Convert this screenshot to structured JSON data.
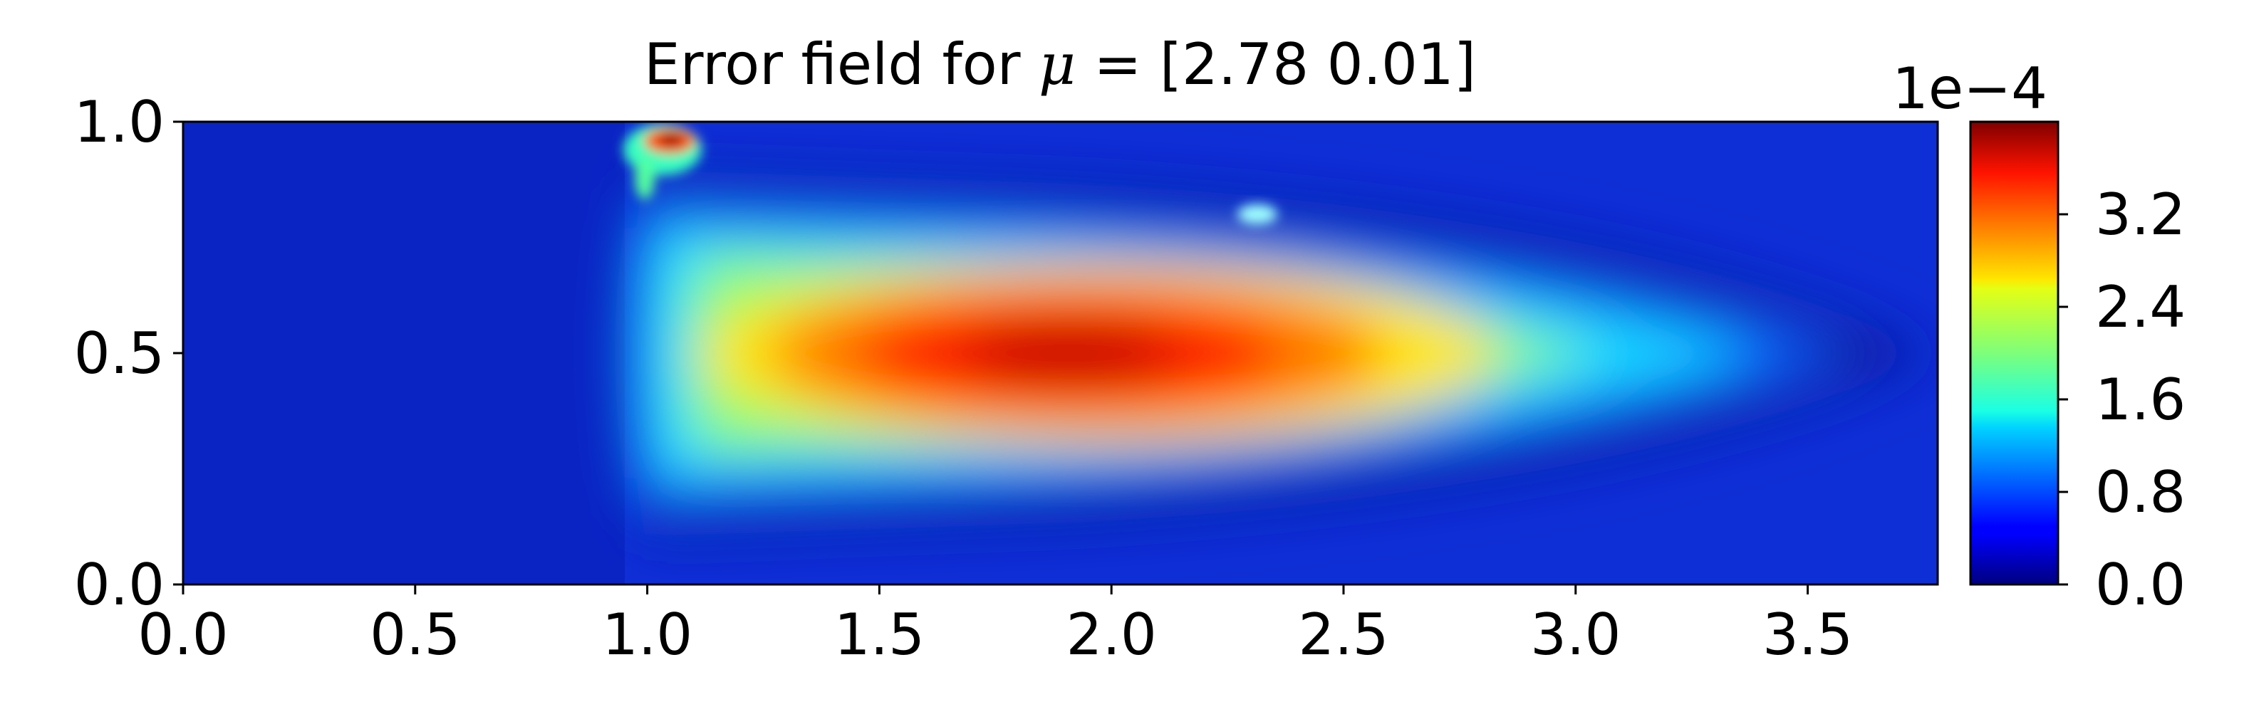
{
  "chart_data": {
    "type": "heatmap",
    "title_prefix": "Error field for ",
    "title_symbol": "μ",
    "title_suffix": " = [2.78 0.01]",
    "xlim": [
      0.0,
      3.78
    ],
    "ylim": [
      0.0,
      1.0
    ],
    "x_ticks": [
      "0.0",
      "0.5",
      "1.0",
      "1.5",
      "2.0",
      "2.5",
      "3.0",
      "3.5"
    ],
    "y_ticks": [
      "0.0",
      "0.5",
      "1.0"
    ],
    "colorbar": {
      "min": 0.0,
      "max": 4.0,
      "scale_label": "1e−4",
      "ticks": [
        "0.0",
        "0.8",
        "1.6",
        "2.4",
        "3.2"
      ],
      "colormap": "jet"
    },
    "field_features": {
      "core_peak": {
        "x": 1.75,
        "y": 0.52,
        "value": 3.9
      },
      "hot_spot": {
        "x": 1.05,
        "y": 0.95,
        "value": 4.0
      },
      "small_spot": {
        "x": 2.32,
        "y": 0.8,
        "value": 1.3
      },
      "front_x": 1.0,
      "plume_end_x": 3.4
    }
  }
}
